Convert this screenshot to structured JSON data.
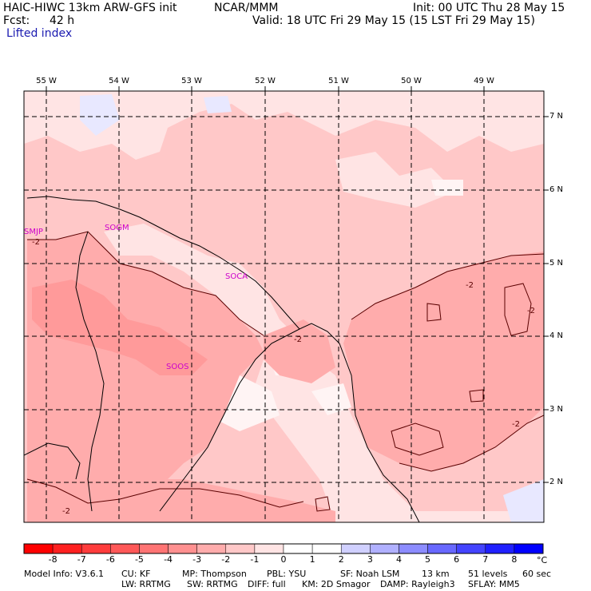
{
  "header": {
    "model": "HAIC-HIWC 13km ARW-GFS init",
    "org": "NCAR/MMM",
    "init": "Init: 00 UTC Thu 28 May 15",
    "fcst_label": "Fcst:",
    "fcst_value": "42 h",
    "valid": "Valid: 18 UTC Fri 29 May 15 (15 LST Fri 29 May 15)",
    "field": "Lifted index"
  },
  "map": {
    "lon_labels": [
      "55 W",
      "54 W",
      "53 W",
      "52 W",
      "51 W",
      "50 W",
      "49 W"
    ],
    "lat_labels": [
      "7 N",
      "6 N",
      "5 N",
      "4 N",
      "3 N",
      "2 N"
    ],
    "stations": [
      "SMJP",
      "SOGM",
      "SOCA",
      "SOOS"
    ],
    "contour_labels": [
      "-2",
      "-2",
      "-2",
      "-2",
      "-2",
      "-2"
    ]
  },
  "colorbar": {
    "labels": [
      "-8",
      "-7",
      "-6",
      "-5",
      "-4",
      "-3",
      "-2",
      "-1",
      "0",
      "1",
      "2",
      "3",
      "4",
      "5",
      "6",
      "7",
      "8"
    ],
    "unit": "°C",
    "colors": [
      "#ff0000",
      "#ff2020",
      "#ff3c3c",
      "#ff5858",
      "#ff7474",
      "#ff9090",
      "#ffacac",
      "#ffc8c8",
      "#ffe4e4",
      "#ffffff",
      "#ffffff",
      "#d0d0ff",
      "#b0b0ff",
      "#8c8cff",
      "#6868ff",
      "#4444ff",
      "#2020ff",
      "#0000ff"
    ]
  },
  "footer": {
    "line1": [
      "Model Info: V3.6.1",
      "CU: KF",
      "MP: Thompson",
      "PBL: YSU",
      "SF: Noah LSM",
      "13 km",
      "51 levels",
      "60 sec"
    ],
    "line2": [
      "LW: RRTMG",
      "SW: RRTMG",
      "DIFF: full",
      "KM: 2D Smagor",
      "DAMP: Rayleigh3",
      "SFLAY: MM5"
    ]
  }
}
